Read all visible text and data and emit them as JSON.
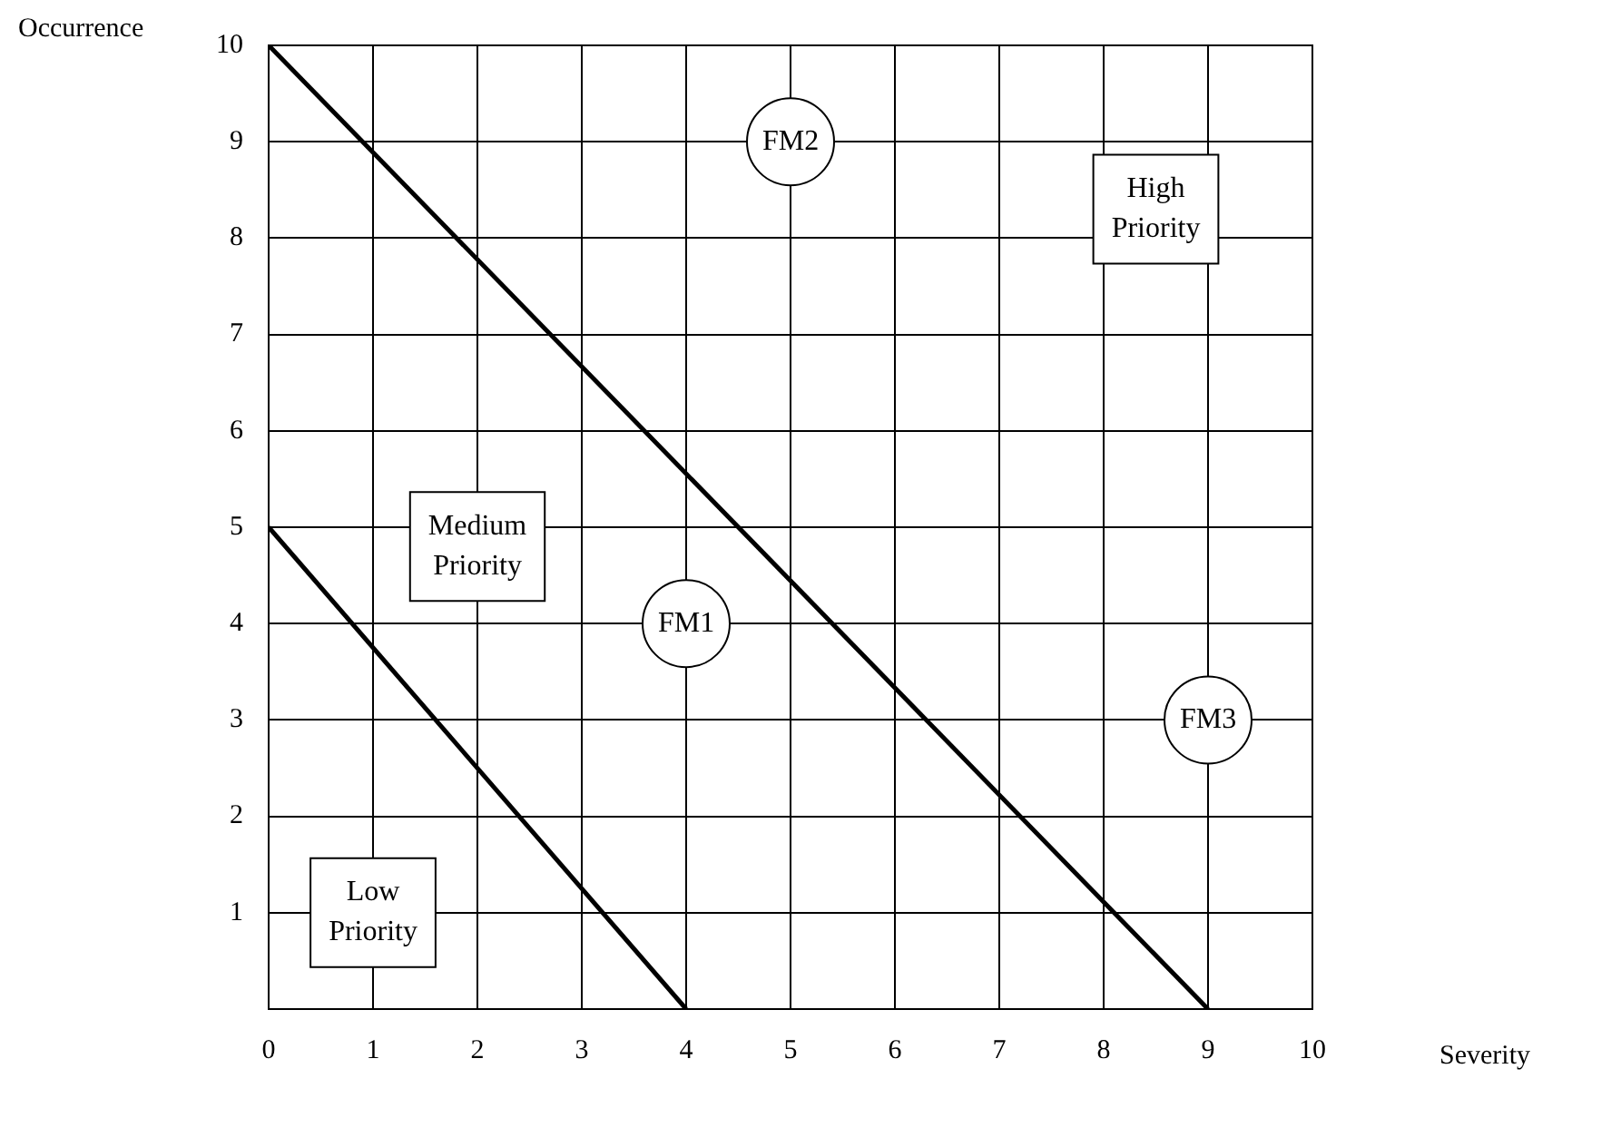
{
  "chart_data": {
    "type": "scatter",
    "xlabel": "Severity",
    "ylabel": "Occurrence",
    "xlim": [
      0,
      10
    ],
    "ylim": [
      0,
      10
    ],
    "xticks": [
      0,
      1,
      2,
      3,
      4,
      5,
      6,
      7,
      8,
      9,
      10
    ],
    "yticks": [
      1,
      2,
      3,
      4,
      5,
      6,
      7,
      8,
      9,
      10
    ],
    "grid": true,
    "legend": false,
    "series": [
      {
        "type": "line",
        "color": "#000000",
        "x": [
          0,
          9
        ],
        "values": [
          10,
          0
        ]
      },
      {
        "type": "line",
        "color": "#000000",
        "x": [
          0,
          4
        ],
        "values": [
          5,
          0
        ]
      },
      {
        "type": "scatter",
        "name": "FM1",
        "color": "#000000",
        "x": [
          4
        ],
        "values": [
          4
        ]
      },
      {
        "type": "scatter",
        "name": "FM2",
        "color": "#000000",
        "x": [
          5
        ],
        "values": [
          9
        ]
      },
      {
        "type": "scatter",
        "name": "FM3",
        "color": "#000000",
        "x": [
          9
        ],
        "values": [
          3
        ]
      }
    ],
    "annotations": [
      "High Priority",
      "Medium Priority",
      "Low Priority"
    ]
  }
}
